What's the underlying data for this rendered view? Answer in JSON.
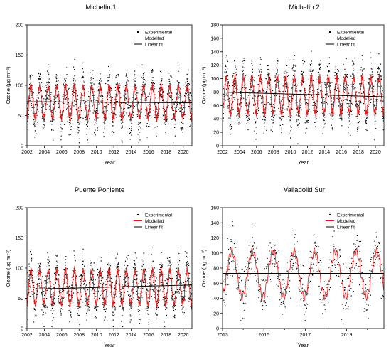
{
  "chart_data": [
    {
      "type": "scatter",
      "title": "Michelín 1",
      "xlabel": "Year",
      "ylabel": "Ozone (µg m⁻³)",
      "xlim": [
        2002,
        2021
      ],
      "ylim": [
        0,
        200
      ],
      "xticks": [
        2002,
        2004,
        2006,
        2008,
        2010,
        2012,
        2014,
        2016,
        2018,
        2020
      ],
      "yticks": [
        0,
        50,
        100,
        150,
        200
      ],
      "legend_position": "top-right",
      "grid": false,
      "series": [
        {
          "name": "Experimental",
          "kind": "points",
          "color": "#000000",
          "daily_mean_level": 72,
          "seasonal_amplitude": 28,
          "range": [
            5,
            185
          ]
        },
        {
          "name": "Modelled",
          "kind": "line",
          "color": "#e41a1c",
          "level": 72,
          "seasonal_amplitude": 26
        },
        {
          "name": "Linear fit",
          "kind": "line",
          "color": "#000000",
          "points": [
            [
              2002,
              73
            ],
            [
              2021,
              71
            ]
          ]
        }
      ]
    },
    {
      "type": "scatter",
      "title": "Michelín 2",
      "xlabel": "Year",
      "ylabel": "Ozone (µg m⁻³)",
      "xlim": [
        2002,
        2021
      ],
      "ylim": [
        0,
        180
      ],
      "xticks": [
        2002,
        2004,
        2006,
        2008,
        2010,
        2012,
        2014,
        2016,
        2018,
        2020
      ],
      "yticks": [
        0,
        20,
        40,
        60,
        80,
        100,
        120,
        140,
        160,
        180
      ],
      "legend_position": "top-right",
      "grid": false,
      "series": [
        {
          "name": "Experimental",
          "kind": "points",
          "color": "#000000",
          "daily_mean_level": 75,
          "seasonal_amplitude": 30,
          "range": [
            3,
            165
          ]
        },
        {
          "name": "Modelled",
          "kind": "line",
          "color": "#e41a1c",
          "level": 75,
          "seasonal_amplitude": 27
        },
        {
          "name": "Linear fit",
          "kind": "line",
          "color": "#000000",
          "points": [
            [
              2002,
              80
            ],
            [
              2021,
              73
            ]
          ]
        }
      ]
    },
    {
      "type": "scatter",
      "title": "Puente Poniente",
      "xlabel": "Year",
      "ylabel": "Ozone (µg m⁻³)",
      "xlim": [
        2002,
        2021
      ],
      "ylim": [
        0,
        200
      ],
      "xticks": [
        2002,
        2004,
        2006,
        2008,
        2010,
        2012,
        2014,
        2016,
        2018,
        2020
      ],
      "yticks": [
        0,
        50,
        100,
        150,
        200
      ],
      "legend_position": "top-right",
      "grid": false,
      "series": [
        {
          "name": "Experimental",
          "kind": "points",
          "color": "#000000",
          "daily_mean_level": 68,
          "seasonal_amplitude": 30,
          "range": [
            3,
            165
          ]
        },
        {
          "name": "Modelled",
          "kind": "line",
          "color": "#e41a1c",
          "level": 68,
          "seasonal_amplitude": 28
        },
        {
          "name": "Linear fit",
          "kind": "line",
          "color": "#000000",
          "points": [
            [
              2002,
              65
            ],
            [
              2021,
              72
            ]
          ]
        }
      ]
    },
    {
      "type": "scatter",
      "title": "Valladolid Sur",
      "xlabel": "Year",
      "ylabel": "Ozone (µg m⁻³)",
      "xlim": [
        2013,
        2020.8
      ],
      "ylim": [
        0,
        160
      ],
      "xticks": [
        2013,
        2015,
        2017,
        2019
      ],
      "xtick_labels": [
        "2013",
        "2015",
        "2017",
        "2019"
      ],
      "minor_xticks": [
        2014,
        2016,
        2018,
        2020
      ],
      "yticks": [
        0,
        20,
        40,
        60,
        80,
        100,
        120,
        140,
        160
      ],
      "legend_position": "top-right",
      "grid": false,
      "series": [
        {
          "name": "Experimental",
          "kind": "points",
          "color": "#000000",
          "daily_mean_level": 72,
          "seasonal_amplitude": 32,
          "range": [
            5,
            150
          ]
        },
        {
          "name": "Modelled",
          "kind": "line",
          "color": "#e41a1c",
          "level": 72,
          "seasonal_amplitude": 30
        },
        {
          "name": "Linear fit",
          "kind": "line",
          "color": "#000000",
          "points": [
            [
              2013,
              73
            ],
            [
              2020.8,
              73
            ]
          ]
        }
      ]
    }
  ]
}
